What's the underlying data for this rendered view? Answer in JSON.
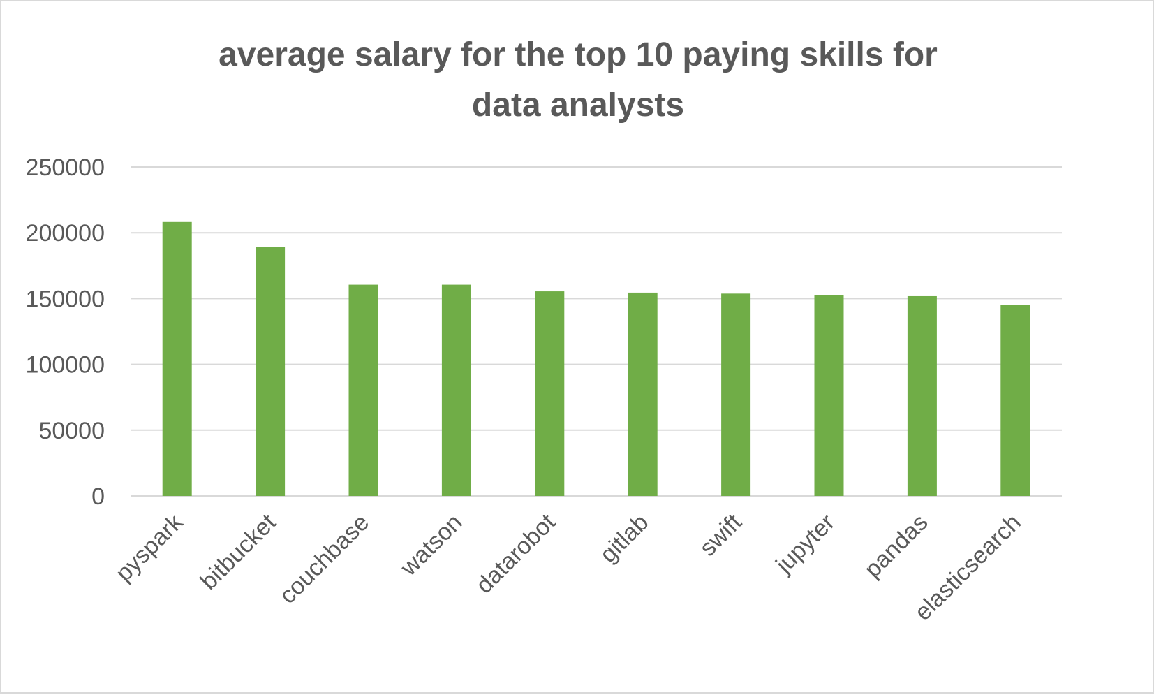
{
  "chart_data": {
    "type": "bar",
    "title": "average salary for the top 10 paying skills for data analysts",
    "title_lines": [
      "average salary for the top 10 paying skills for",
      "data analysts"
    ],
    "xlabel": "",
    "ylabel": "",
    "categories": [
      "pyspark",
      "bitbucket",
      "couchbase",
      "watson",
      "datarobot",
      "gitlab",
      "swift",
      "jupyter",
      "pandas",
      "elasticsearch"
    ],
    "values": [
      208172,
      189155,
      160515,
      160515,
      155486,
      154500,
      153750,
      152777,
      151821,
      145000
    ],
    "ylim": [
      0,
      250000
    ],
    "yticks": [
      "0",
      "50000",
      "100000",
      "150000",
      "200000",
      "250000"
    ],
    "grid": true,
    "legend": "none",
    "colors": {
      "bar": "#70ad47",
      "text": "#595959",
      "grid": "#d9d9d9"
    }
  }
}
